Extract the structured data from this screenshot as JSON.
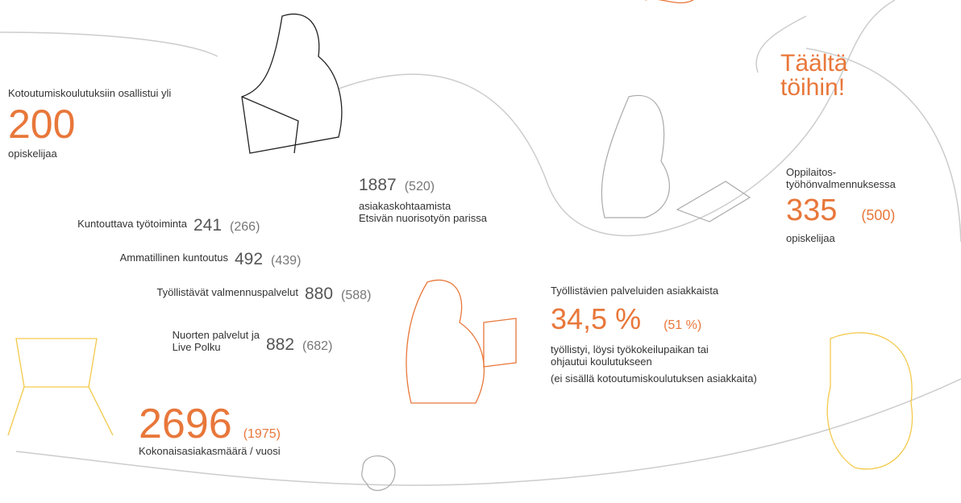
{
  "heading": [
    "Täältä",
    "töihin!"
  ],
  "integration": {
    "label": "Kotoutumiskoulutuksiin osallistui yli",
    "value": "200",
    "unit": "opiskelijaa"
  },
  "outreach": {
    "value": "1887",
    "previous": "(520)",
    "lines": [
      "asiakaskohtaamista",
      "Etsivän nuorisotyön parissa"
    ]
  },
  "services": [
    {
      "label": [
        "Kuntouttava työtoiminta"
      ],
      "value": "241",
      "previous": "(266)"
    },
    {
      "label": [
        "Ammatillinen kuntoutus"
      ],
      "value": "492",
      "previous": "(439)"
    },
    {
      "label": [
        "Työllistävät valmennuspalvelut"
      ],
      "value": "880",
      "previous": "(588)"
    },
    {
      "label": [
        "Nuorten palvelut ja",
        "Live Polku"
      ],
      "value": "882",
      "previous": "(682)"
    }
  ],
  "total": {
    "value": "2696",
    "previous": "(1975)",
    "label": "Kokonaisasiakasmäärä / vuosi"
  },
  "school": {
    "label": [
      "Oppilaitos-",
      "työhönvalmennuksessa"
    ],
    "value": "335",
    "previous": "(500)",
    "unit": "opiskelijaa"
  },
  "employment": {
    "label": "Työllistävien palveluiden asiakkaista",
    "value": "34,5 %",
    "previous": "(51 %)",
    "lines": [
      "työllistyi, löysi työkokeilupaikan tai",
      "ohjautui koulutukseen"
    ],
    "note": "(ei sisällä kotoutumiskoulutuksen asiakkaita)"
  }
}
